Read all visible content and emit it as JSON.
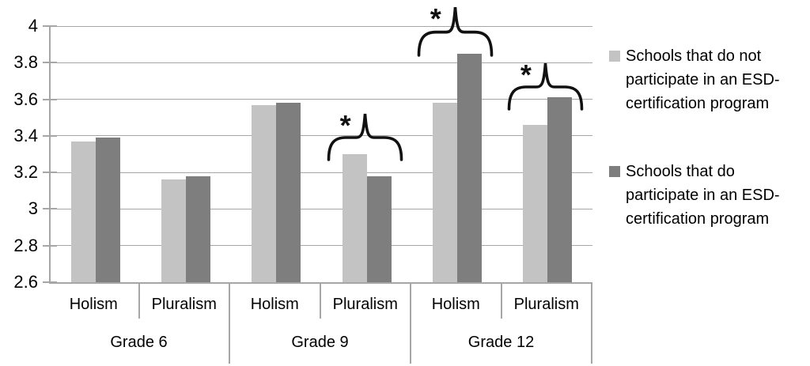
{
  "chart_data": {
    "type": "bar",
    "title": "",
    "groups": [
      "Grade 6",
      "Grade 9",
      "Grade 12"
    ],
    "subcategories": [
      "Holism",
      "Pluralism"
    ],
    "categories": [
      "Grade 6 Holism",
      "Grade 6 Pluralism",
      "Grade 9 Holism",
      "Grade 9 Pluralism",
      "Grade 12 Holism",
      "Grade 12 Pluralism"
    ],
    "series": [
      {
        "name": "Schools that do not participate in an ESD-certification program",
        "color": "#c3c3c3",
        "values": [
          3.37,
          3.16,
          3.57,
          3.3,
          3.58,
          3.46
        ]
      },
      {
        "name": "Schools that do participate in an ESD-certification program",
        "color": "#7e7e7e",
        "values": [
          3.39,
          3.18,
          3.58,
          3.18,
          3.85,
          3.61
        ]
      }
    ],
    "ylim": [
      2.6,
      4.0
    ],
    "ytick_step": 0.2,
    "yticks": [
      "4",
      "3.8",
      "3.6",
      "3.4",
      "3.2",
      "3",
      "2.8",
      "2.6"
    ],
    "grid": true,
    "legend_position": "right",
    "annotations": [
      {
        "symbol": "*",
        "group": "Grade 9",
        "subcategory": "Pluralism"
      },
      {
        "symbol": "*",
        "group": "Grade 12",
        "subcategory": "Holism"
      },
      {
        "symbol": "*",
        "group": "Grade 12",
        "subcategory": "Pluralism"
      }
    ]
  },
  "colors": {
    "gridline": "#a6a6a6",
    "axis": "#a6a6a6",
    "text": "#000000",
    "annotation": "#111111"
  }
}
